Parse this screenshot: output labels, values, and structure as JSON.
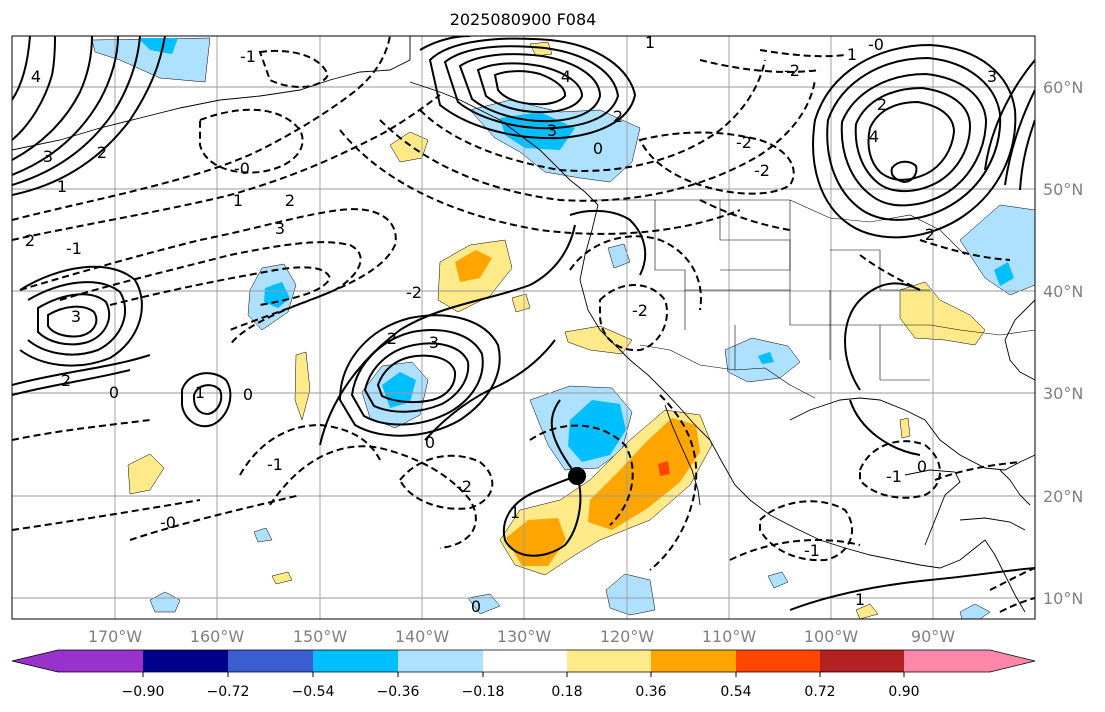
{
  "title": "2025080900 F084",
  "colors": {
    "neg_090": "#9932CC",
    "neg_072": "#00008B",
    "neg_054": "#3A5ED0",
    "neg_036": "#00BFFF",
    "neg_018": "#ADE1FF",
    "zero": "#FFFFFF",
    "pos_018": "#FFEA8A",
    "pos_036": "#FFA500",
    "pos_054": "#FF4500",
    "pos_072": "#B22222",
    "pos_090": "#FF88AA"
  },
  "map": {
    "lon_labels": [
      "170°W",
      "160°W",
      "150°W",
      "140°W",
      "130°W",
      "120°W",
      "110°W",
      "100°W",
      "90°W"
    ],
    "lat_labels": [
      "60°N",
      "50°N",
      "40°N",
      "30°N",
      "20°N",
      "10°N"
    ],
    "contour_labels": {
      "c1": "4",
      "c2": "3",
      "c3": "2",
      "c4": "1",
      "c5": "-0",
      "c6": "1",
      "c7": "2",
      "c8": "3",
      "c9": "-1",
      "c10": "2",
      "c11": "3",
      "c12": "2",
      "c13": "0",
      "c14": "3",
      "c15": "2",
      "c16": "1",
      "c17": "0",
      "c18": "-1",
      "c19": "-2",
      "c20": "-0",
      "c21": "1",
      "c22": "-2",
      "c23": "0",
      "c24": "-1",
      "c25": "1",
      "c26": "4",
      "c27": "2",
      "c28": "3",
      "c29": "-2",
      "c30": "-2",
      "c31": "1",
      "c32": "-0",
      "c33": "-2",
      "c34": "2",
      "c35": "3",
      "c36": "4",
      "c37": "2",
      "c38": "0",
      "c39": "-2",
      "c40": "-1",
      "c41": "-1",
      "c42": "0",
      "c43": "1",
      "c44": "0"
    }
  },
  "colorbar": {
    "ticks": [
      "−0.90",
      "−0.72",
      "−0.54",
      "−0.36",
      "−0.18",
      "0.18",
      "0.36",
      "0.54",
      "0.72",
      "0.90"
    ]
  }
}
